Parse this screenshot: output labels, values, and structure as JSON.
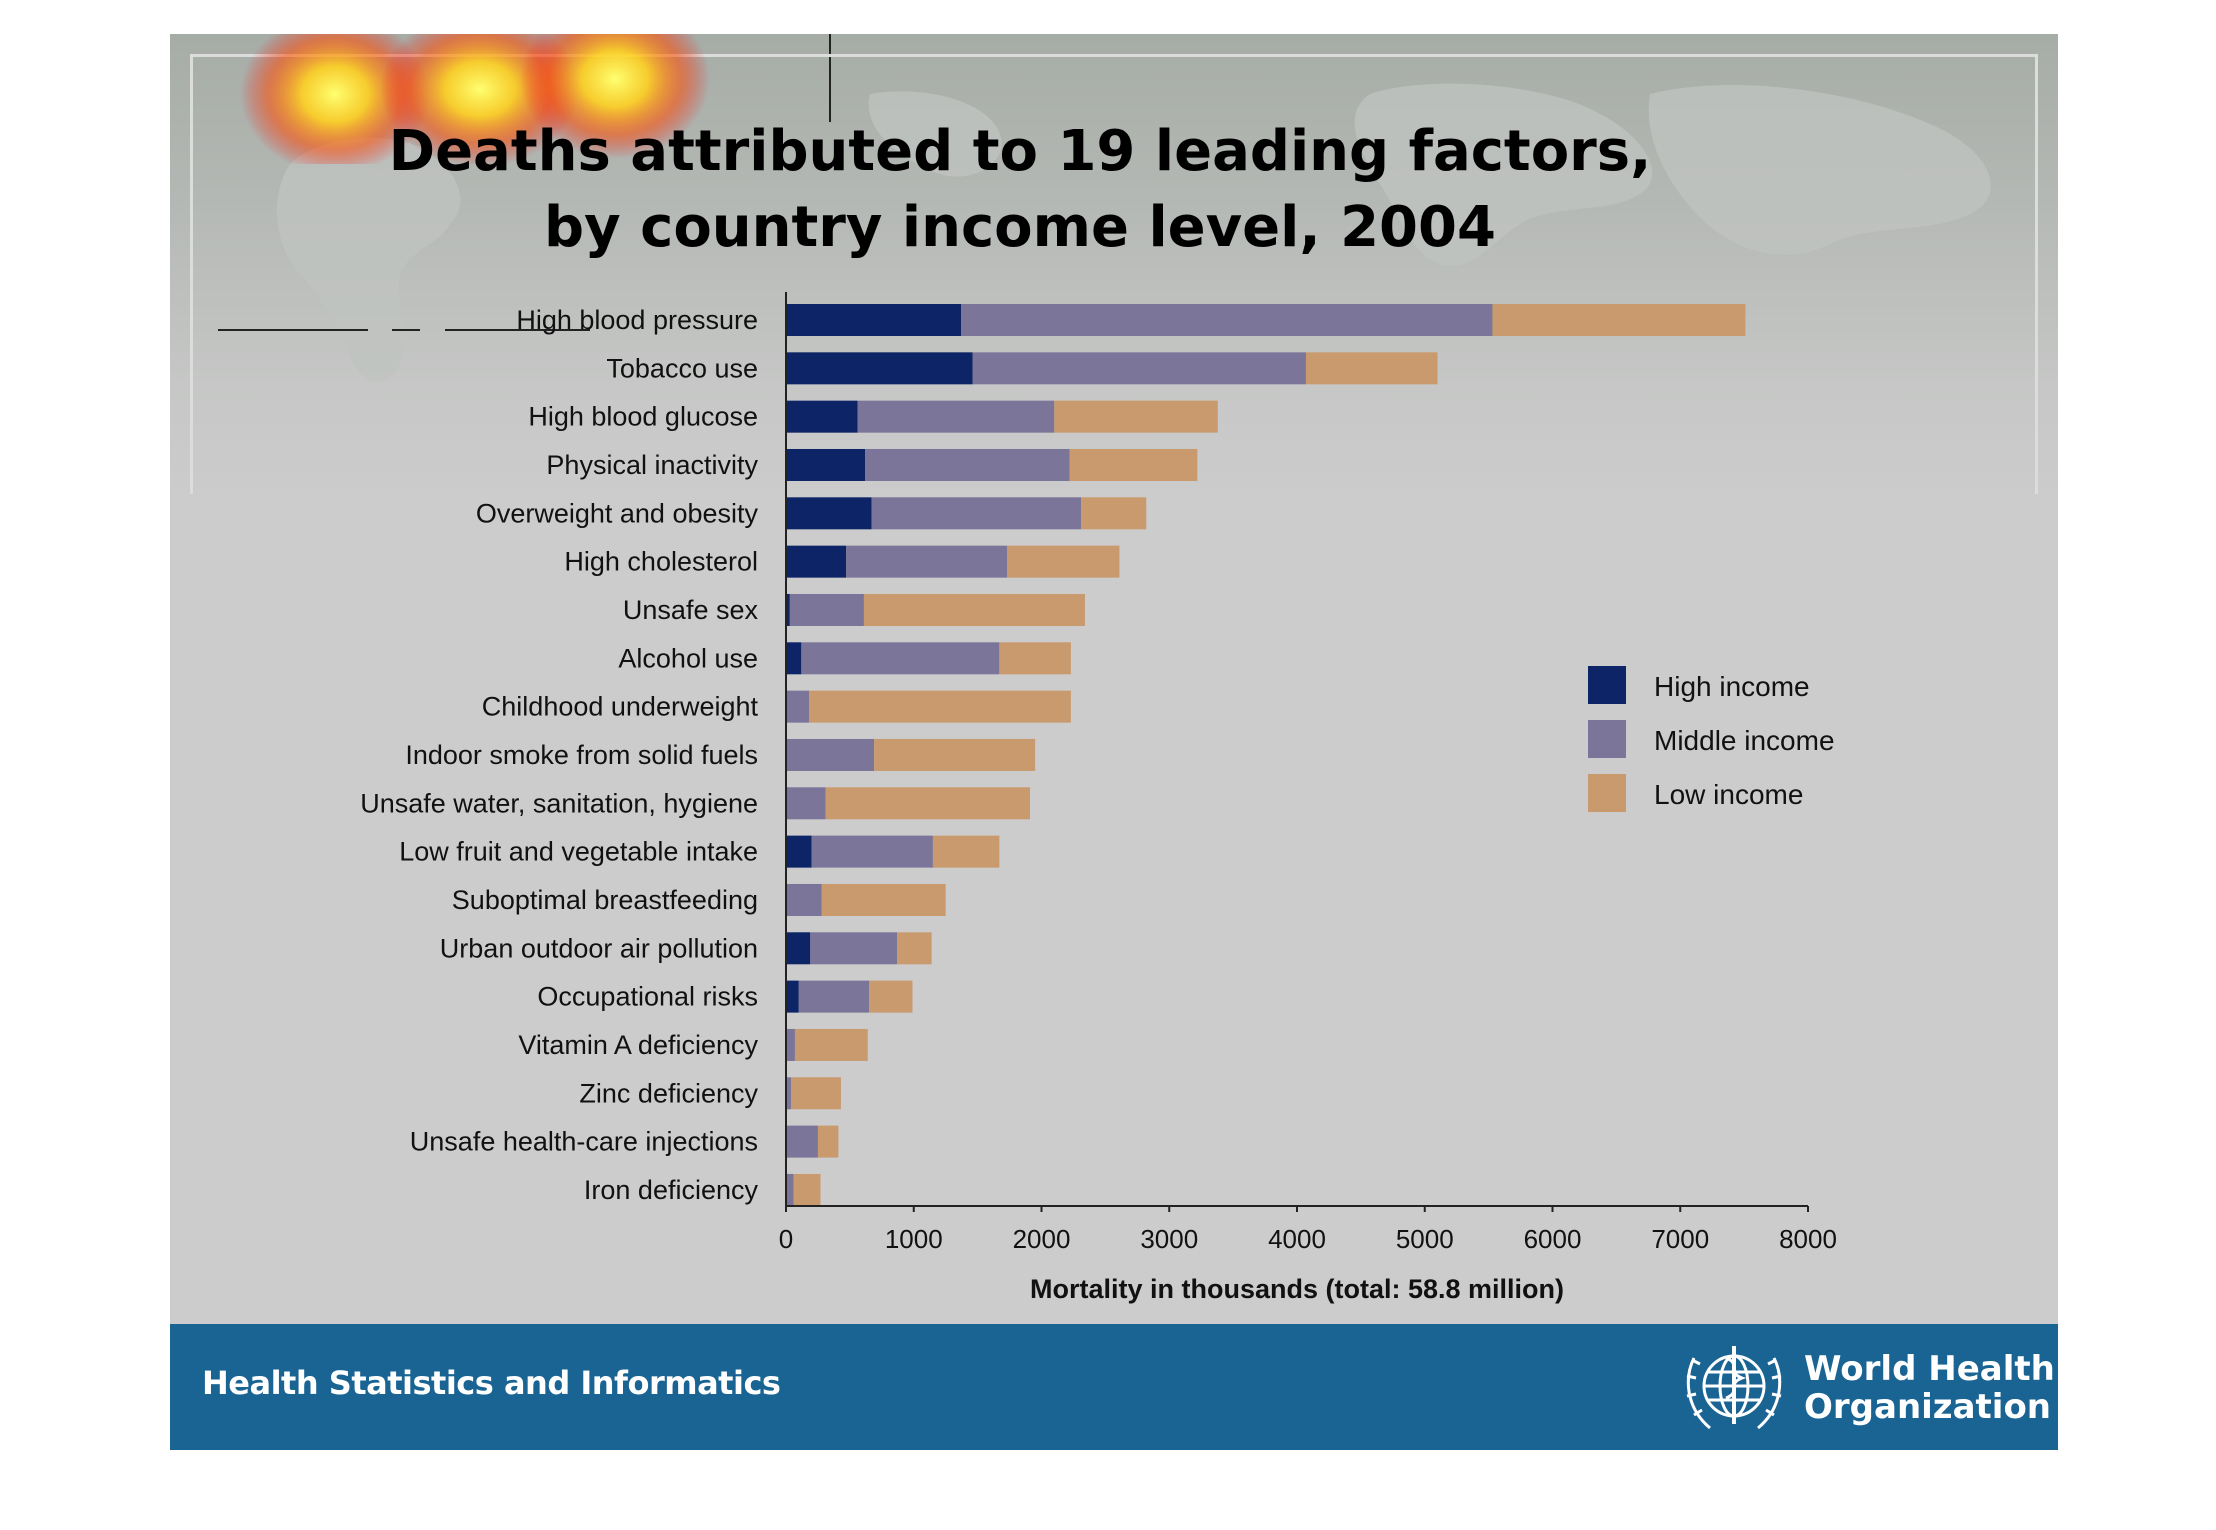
{
  "slide": {
    "title_line1": "Deaths attributed to 19 leading factors,",
    "title_line2": "by country income level, 2004",
    "footer_text": "Health Statistics and Informatics",
    "org_name_line1": "World Health",
    "org_name_line2": "Organization",
    "emblem_icon": "who-emblem-icon",
    "footer_color": "#1a6494"
  },
  "chart_data": {
    "type": "bar",
    "orientation": "horizontal",
    "stacked": true,
    "categories": [
      "High blood pressure",
      "Tobacco use",
      "High blood glucose",
      "Physical inactivity",
      "Overweight and obesity",
      "High cholesterol",
      "Unsafe sex",
      "Alcohol use",
      "Childhood underweight",
      "Indoor smoke from solid fuels",
      "Unsafe water, sanitation, hygiene",
      "Low fruit and vegetable intake",
      "Suboptimal breastfeeding",
      "Urban outdoor air pollution",
      "Occupational risks",
      "Vitamin A deficiency",
      "Zinc deficiency",
      "Unsafe health-care injections",
      "Iron deficiency"
    ],
    "series": [
      {
        "name": "High income",
        "color": "#0d2466",
        "values": [
          1370,
          1460,
          560,
          620,
          670,
          470,
          30,
          120,
          10,
          10,
          10,
          200,
          10,
          190,
          100,
          0,
          0,
          0,
          10
        ]
      },
      {
        "name": "Middle income",
        "color": "#7a7599",
        "values": [
          4160,
          2610,
          1540,
          1600,
          1640,
          1260,
          580,
          1550,
          170,
          680,
          300,
          950,
          270,
          680,
          550,
          70,
          40,
          250,
          50
        ]
      },
      {
        "name": "Low income",
        "color": "#c99a6d",
        "values": [
          1980,
          1030,
          1280,
          1000,
          510,
          880,
          1730,
          560,
          2050,
          1260,
          1600,
          520,
          970,
          270,
          340,
          570,
          390,
          160,
          210
        ]
      }
    ],
    "xlabel": "Mortality in thousands (total: 58.8 million)",
    "xlim": [
      0,
      8000
    ],
    "xticks": [
      0,
      1000,
      2000,
      3000,
      4000,
      5000,
      6000,
      7000,
      8000
    ],
    "grid": false,
    "legend_position": "right"
  }
}
